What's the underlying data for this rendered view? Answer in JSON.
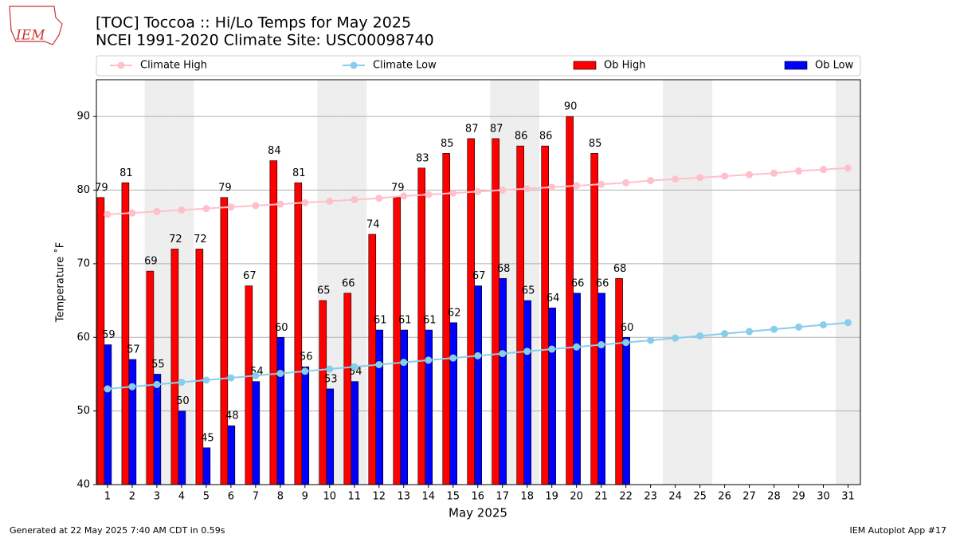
{
  "chart_data": {
    "type": "bar",
    "logo_text": "IEM",
    "title": "[TOC] Toccoa :: Hi/Lo Temps for May 2025",
    "subtitle": "NCEI 1991-2020 Climate Site: USC00098740",
    "x_label": "May 2025",
    "y_label": "Temperature ˚F",
    "x": [
      1,
      2,
      3,
      4,
      5,
      6,
      7,
      8,
      9,
      10,
      11,
      12,
      13,
      14,
      15,
      16,
      17,
      18,
      19,
      20,
      21,
      22,
      23,
      24,
      25,
      26,
      27,
      28,
      29,
      30,
      31
    ],
    "shaded_days": [
      3,
      4,
      10,
      11,
      17,
      18,
      24,
      25,
      31
    ],
    "series": [
      {
        "name": "Climate High",
        "style": "line",
        "color": "#ffc0cb",
        "values": [
          76.7,
          76.9,
          77.1,
          77.3,
          77.5,
          77.7,
          77.9,
          78.1,
          78.3,
          78.5,
          78.7,
          78.9,
          79.2,
          79.4,
          79.6,
          79.8,
          80.0,
          80.2,
          80.4,
          80.6,
          80.8,
          81.0,
          81.3,
          81.5,
          81.7,
          81.9,
          82.1,
          82.3,
          82.6,
          82.8,
          83.0
        ]
      },
      {
        "name": "Climate Low",
        "style": "line",
        "color": "#87ceeb",
        "values": [
          53.0,
          53.3,
          53.6,
          53.9,
          54.2,
          54.5,
          54.8,
          55.1,
          55.4,
          55.7,
          56.0,
          56.3,
          56.6,
          56.9,
          57.2,
          57.5,
          57.8,
          58.1,
          58.4,
          58.7,
          59.0,
          59.3,
          59.6,
          59.9,
          60.2,
          60.5,
          60.8,
          61.1,
          61.4,
          61.7,
          62.0
        ]
      },
      {
        "name": "Ob High",
        "style": "bar",
        "color": "#ff0000",
        "values": [
          79,
          81,
          69,
          72,
          72,
          79,
          67,
          84,
          81,
          65,
          66,
          74,
          79,
          83,
          85,
          87,
          87,
          86,
          86,
          90,
          85,
          68,
          null,
          null,
          null,
          null,
          null,
          null,
          null,
          null,
          null
        ]
      },
      {
        "name": "Ob Low",
        "style": "bar",
        "color": "#0000ff",
        "values": [
          59,
          57,
          55,
          50,
          45,
          48,
          54,
          60,
          56,
          53,
          54,
          61,
          61,
          61,
          62,
          67,
          68,
          65,
          64,
          66,
          66,
          60,
          null,
          null,
          null,
          null,
          null,
          null,
          null,
          null,
          null
        ]
      }
    ],
    "xlim": [
      0.55,
      31.5
    ],
    "ylim": [
      40,
      95
    ],
    "yticks": [
      40,
      50,
      60,
      70,
      80,
      90
    ],
    "grid": true,
    "footer_left": "Generated at 22 May 2025 7:40 AM CDT in 0.59s",
    "footer_right": "IEM Autoplot App #17"
  }
}
